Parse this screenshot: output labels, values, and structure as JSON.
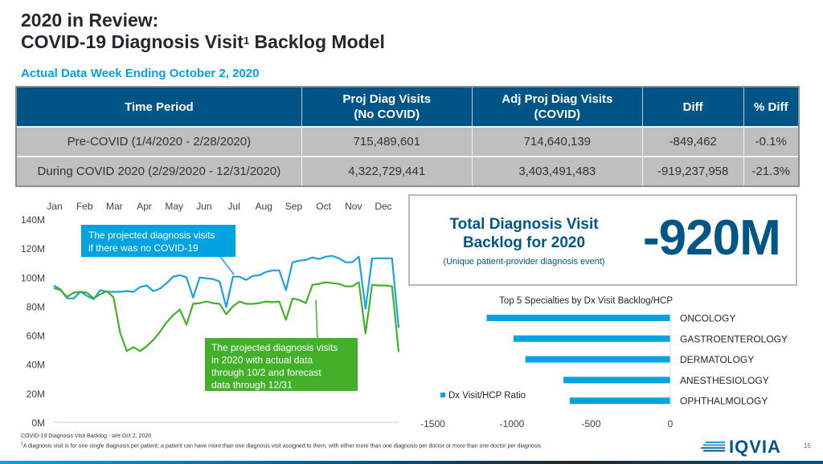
{
  "header": {
    "title_line1": "2020 in Review:",
    "title_line2_pre": "COVID-19 Diagnosis Visit",
    "title_sup": "1",
    "title_line2_post": " Backlog Model",
    "subtitle": "Actual Data Week Ending October 2, 2020"
  },
  "colors": {
    "brand_blue": "#005587",
    "accent_cyan": "#00a3e0",
    "no_covid_line": "#1ba1e2",
    "covid_line": "#43b02a",
    "table_header_bg": "#005587",
    "table_row_bg": "#bfbfbf"
  },
  "table": {
    "headers": [
      "Time Period",
      "Proj Diag Visits\n(No COVID)",
      "Adj Proj Diag Visits\n(COVID)",
      "Diff",
      "% Diff"
    ],
    "header_lines": [
      [
        "Time Period"
      ],
      [
        "Proj Diag Visits",
        "(No COVID)"
      ],
      [
        "Adj Proj Diag Visits",
        "(COVID)"
      ],
      [
        "Diff"
      ],
      [
        "% Diff"
      ]
    ],
    "rows": [
      [
        "Pre-COVID (1/4/2020 - 2/28/2020)",
        "715,489,601",
        "714,640,139",
        "-849,462",
        "-0.1%"
      ],
      [
        "During COVID 2020 (2/29/2020 - 12/31/2020)",
        "4,322,729,441",
        "3,403,491,483",
        "-919,237,958",
        "-21.3%"
      ]
    ]
  },
  "kpi": {
    "label_line1": "Total Diagnosis Visit",
    "label_line2": "Backlog for 2020",
    "note": "(Unique patient-provider diagnosis event)",
    "value": "-920M"
  },
  "chart_data": [
    {
      "type": "line",
      "title": "",
      "xlabel": "",
      "ylabel": "",
      "x_tick_labels": [
        "Jan",
        "Feb",
        "Mar",
        "Apr",
        "May",
        "Jun",
        "Jul",
        "Aug",
        "Sep",
        "Oct",
        "Nov",
        "Dec"
      ],
      "x_tick_position": "top",
      "y_tick_labels": [
        "0M",
        "20M",
        "40M",
        "60M",
        "80M",
        "100M",
        "120M",
        "140M"
      ],
      "ylim": [
        0,
        140
      ],
      "y_unit": "M",
      "grid": false,
      "x_weeks": 53,
      "series": [
        {
          "name": "Proj Diag Visits (No COVID)",
          "color": "#1ba1e2",
          "annotation": "The projected diagnosis visits if there was no COVID-19",
          "values": [
            94.3,
            91.5,
            85.4,
            85.4,
            89.9,
            87.1,
            84.9,
            91.0,
            89.9,
            89.9,
            89.9,
            90.4,
            89.9,
            93.2,
            94.3,
            90.4,
            92.1,
            95.9,
            100.3,
            101.4,
            99.8,
            86.0,
            99.8,
            99.2,
            98.7,
            97.0,
            79.4,
            100.3,
            100.3,
            98.1,
            100.9,
            101.4,
            103.6,
            104.7,
            104.7,
            91.0,
            110.3,
            111.4,
            111.9,
            113.6,
            112.5,
            114.1,
            114.7,
            113.0,
            110.3,
            110.3,
            114.1,
            78.3,
            113.0,
            113.0,
            113.0,
            113.0,
            65.0
          ]
        },
        {
          "name": "Adj Proj Diag Visits (COVID)",
          "color": "#43b02a",
          "annotation": "The projected diagnosis visits in 2020 with actual data through 10/2 and forecast data through 12/31",
          "values": [
            92.6,
            91.0,
            86.5,
            89.3,
            89.9,
            89.3,
            85.4,
            88.2,
            90.4,
            86.0,
            61.7,
            49.1,
            51.8,
            49.1,
            52.4,
            56.8,
            62.3,
            68.9,
            73.9,
            77.7,
            67.3,
            81.6,
            82.1,
            83.2,
            82.1,
            81.6,
            74.4,
            79.9,
            83.2,
            81.6,
            81.6,
            82.1,
            83.2,
            82.7,
            83.2,
            70.6,
            85.4,
            84.3,
            82.1,
            94.8,
            95.4,
            96.5,
            95.9,
            95.4,
            93.7,
            93.7,
            96.5,
            61.2,
            94.8,
            94.3,
            94.3,
            93.7,
            48.5
          ]
        }
      ]
    },
    {
      "type": "bar",
      "orientation": "horizontal",
      "title": "Top 5 Specialties by Dx Visit Backlog/HCP",
      "categories": [
        "ONCOLOGY",
        "GASTROENTEROLOGY",
        "DERMATOLOGY",
        "ANESTHESIOLOGY",
        "OPHTHALMOLOGY"
      ],
      "series": [
        {
          "name": "Dx Visit/HCP Ratio",
          "color": "#00a3e0",
          "values": [
            -1160,
            -990,
            -915,
            -675,
            -635
          ]
        }
      ],
      "x_tick_labels": [
        "-1500",
        "-1000",
        "-500",
        "0"
      ],
      "xlim": [
        -1500,
        0
      ],
      "legend": "bottom-left",
      "grid": false
    }
  ],
  "footer": {
    "source": "COVID-19 Diagnosis Visit Backlog - w/e Oct 2, 2020",
    "note_sup": "1",
    "note": "A diagnosis visit is for one single diagnosis per patient; a patient can have more than one diagnosis visit assigned to them, with either more than one diagnosis per doctor or more than one doctor per diagnosis",
    "logo_text": "IQVIA",
    "page_number": "15"
  }
}
